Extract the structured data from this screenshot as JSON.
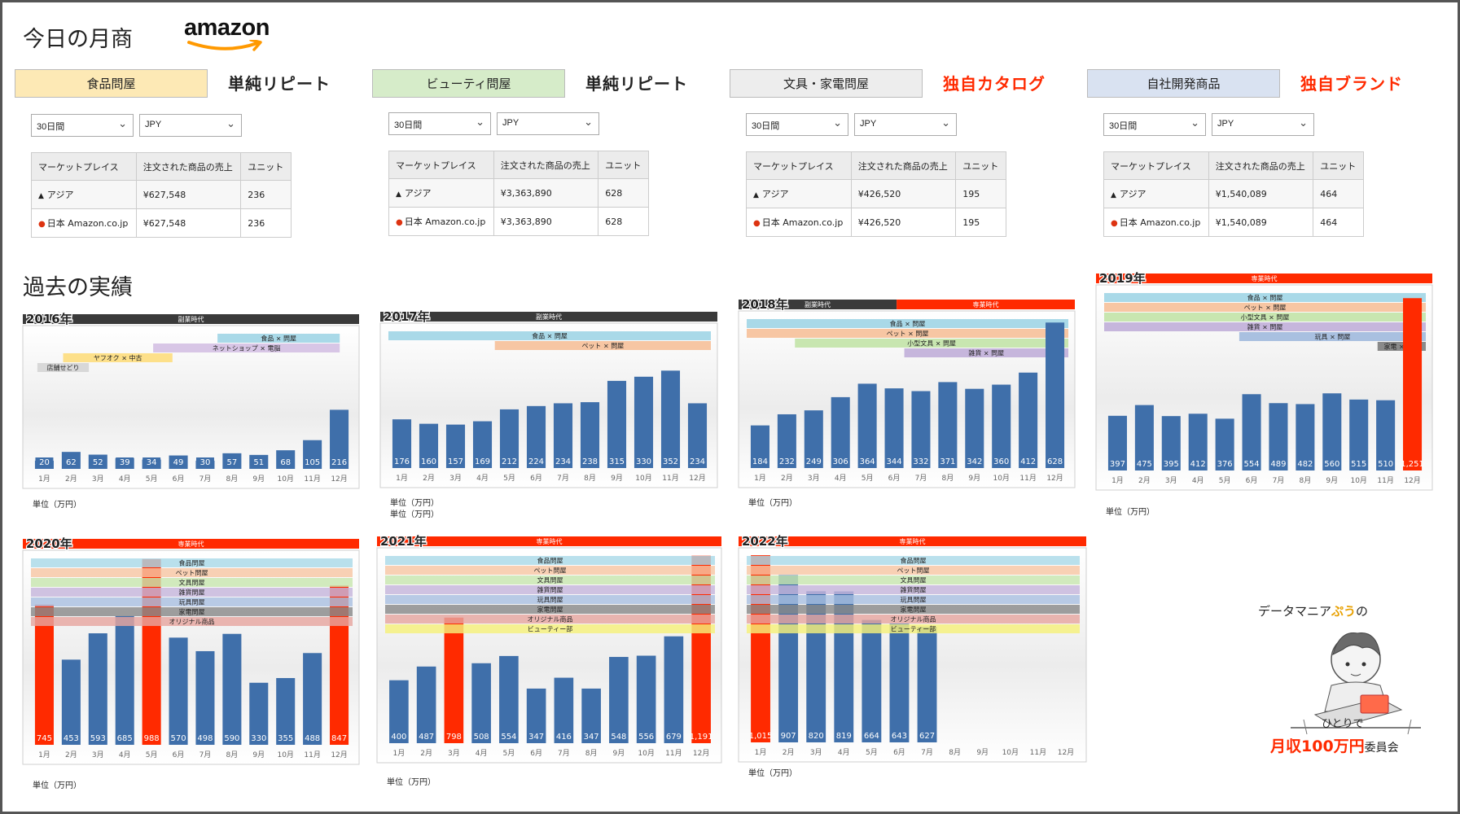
{
  "header": {
    "title": "今日の月商",
    "logo_text": "amazon"
  },
  "past_title": "過去の実績",
  "categories": [
    {
      "name": "食品問屋",
      "kind": "単純リピート",
      "tag_color": "#fde9b5",
      "kind_color": "#222222",
      "period": "30日間",
      "currency": "JPY",
      "table": {
        "headers": [
          "マーケットプレイス",
          "注文された商品の売上",
          "ユニット"
        ],
        "rows": [
          [
            "アジア",
            "¥627,548",
            "236"
          ],
          [
            "日本 Amazon.co.jp",
            "¥627,548",
            "236"
          ]
        ]
      }
    },
    {
      "name": "ビューティ問屋",
      "kind": "単純リピート",
      "tag_color": "#d6ecc9",
      "kind_color": "#222222",
      "period": "30日間",
      "currency": "JPY",
      "table": {
        "headers": [
          "マーケットプレイス",
          "注文された商品の売上",
          "ユニット"
        ],
        "rows": [
          [
            "アジア",
            "¥3,363,890",
            "628"
          ],
          [
            "日本 Amazon.co.jp",
            "¥3,363,890",
            "628"
          ]
        ]
      }
    },
    {
      "name": "文具・家電問屋",
      "kind": "独自カタログ",
      "tag_color": "#ededed",
      "kind_color": "#ff2a00",
      "period": "30日間",
      "currency": "JPY",
      "table": {
        "headers": [
          "マーケットプレイス",
          "注文された商品の売上",
          "ユニット"
        ],
        "rows": [
          [
            "アジア",
            "¥426,520",
            "195"
          ],
          [
            "日本 Amazon.co.jp",
            "¥426,520",
            "195"
          ]
        ]
      }
    },
    {
      "name": "自社開発商品",
      "kind": "独自ブランド",
      "tag_color": "#d9e2f1",
      "kind_color": "#ff2a00",
      "period": "30日間",
      "currency": "JPY",
      "table": {
        "headers": [
          "マーケットプレイス",
          "注文された商品の売上",
          "ユニット"
        ],
        "rows": [
          [
            "アジア",
            "¥1,540,089",
            "464"
          ],
          [
            "日本 Amazon.co.jp",
            "¥1,540,089",
            "464"
          ]
        ]
      }
    }
  ],
  "unit_label": "単位（万円）",
  "era_labels": {
    "side": "副業時代",
    "full": "専業時代"
  },
  "colors": {
    "bar": "#3f6faa",
    "highlight": "#ff2a00",
    "side_era": "#3a3a3a",
    "full_era": "#ff2a00"
  },
  "chart_data": [
    {
      "type": "bar",
      "title": "2016年",
      "eras": [
        "副業時代"
      ],
      "categories": [
        "1月",
        "2月",
        "3月",
        "4月",
        "5月",
        "6月",
        "7月",
        "8月",
        "9月",
        "10月",
        "11月",
        "12月"
      ],
      "values": [
        20,
        62,
        52,
        39,
        34,
        49,
        30,
        57,
        51,
        68,
        105,
        216
      ],
      "highlight": [],
      "ylim": [
        0,
        500
      ],
      "business_lines": [
        "食品 × 問屋",
        "ネットショップ × 電脳",
        "ヤフオク × 中古",
        "店舗せどり"
      ]
    },
    {
      "type": "bar",
      "title": "2017年",
      "eras": [
        "副業時代"
      ],
      "categories": [
        "1月",
        "2月",
        "3月",
        "4月",
        "5月",
        "6月",
        "7月",
        "8月",
        "9月",
        "10月",
        "11月",
        "12月"
      ],
      "values": [
        176,
        160,
        157,
        169,
        212,
        224,
        234,
        238,
        315,
        330,
        352,
        234
      ],
      "highlight": [],
      "ylim": [
        0,
        500
      ],
      "business_lines": [
        "食品 × 問屋",
        "ペット × 問屋"
      ]
    },
    {
      "type": "bar",
      "title": "2018年",
      "eras": [
        "副業時代",
        "専業時代"
      ],
      "categories": [
        "1月",
        "2月",
        "3月",
        "4月",
        "5月",
        "6月",
        "7月",
        "8月",
        "9月",
        "10月",
        "11月",
        "12月"
      ],
      "values": [
        184,
        232,
        249,
        306,
        364,
        344,
        332,
        371,
        342,
        360,
        412,
        628
      ],
      "highlight": [],
      "ylim": [
        0,
        650
      ],
      "business_lines": [
        "食品 × 問屋",
        "ペット × 問屋",
        "小型文具 × 問屋",
        "雑貨 × 問屋"
      ]
    },
    {
      "type": "bar",
      "title": "2019年",
      "eras": [
        "専業時代"
      ],
      "categories": [
        "1月",
        "2月",
        "3月",
        "4月",
        "5月",
        "6月",
        "7月",
        "8月",
        "9月",
        "10月",
        "11月",
        "12月"
      ],
      "values": [
        397,
        475,
        395,
        412,
        376,
        554,
        489,
        482,
        560,
        515,
        510,
        1251
      ],
      "highlight": [
        11
      ],
      "ylim": [
        0,
        1300
      ],
      "business_lines": [
        "食品 × 問屋",
        "ペット × 問屋",
        "小型文具 × 問屋",
        "雑貨 × 問屋",
        "玩具 × 問屋",
        "家電 × 問屋"
      ]
    },
    {
      "type": "bar",
      "title": "2020年",
      "eras": [
        "専業時代"
      ],
      "categories": [
        "1月",
        "2月",
        "3月",
        "4月",
        "5月",
        "6月",
        "7月",
        "8月",
        "9月",
        "10月",
        "11月",
        "12月"
      ],
      "values": [
        745,
        453,
        593,
        685,
        988,
        570,
        498,
        590,
        330,
        355,
        488,
        847
      ],
      "highlight": [
        0,
        4,
        11
      ],
      "ylim": [
        0,
        1000
      ],
      "business_lines": [
        "食品問屋",
        "ペット問屋",
        "文具問屋",
        "雑貨問屋",
        "玩具問屋",
        "家電問屋",
        "オリジナル商品"
      ]
    },
    {
      "type": "bar",
      "title": "2021年",
      "eras": [
        "専業時代"
      ],
      "categories": [
        "1月",
        "2月",
        "3月",
        "4月",
        "5月",
        "6月",
        "7月",
        "8月",
        "9月",
        "10月",
        "11月",
        "12月"
      ],
      "values": [
        400,
        487,
        798,
        508,
        554,
        347,
        416,
        347,
        548,
        556,
        679,
        1191
      ],
      "highlight": [
        2,
        11
      ],
      "ylim": [
        0,
        1200
      ],
      "business_lines": [
        "食品問屋",
        "ペット問屋",
        "文具問屋",
        "雑貨問屋",
        "玩具問屋",
        "家電問屋",
        "オリジナル商品",
        "ビューティー部"
      ]
    },
    {
      "type": "bar",
      "title": "2022年",
      "eras": [
        "専業時代"
      ],
      "categories": [
        "1月",
        "2月",
        "3月",
        "4月",
        "5月",
        "6月",
        "7月",
        "8月",
        "9月",
        "10月",
        "11月",
        "12月"
      ],
      "values": [
        1015,
        907,
        820,
        819,
        664,
        643,
        627,
        null,
        null,
        null,
        null,
        null
      ],
      "highlight": [
        0
      ],
      "ylim": [
        0,
        1020
      ],
      "business_lines": [
        "食品問屋",
        "ペット問屋",
        "文具問屋",
        "雑貨問屋",
        "玩具問屋",
        "家電問屋",
        "オリジナル商品",
        "ビューティー部"
      ]
    }
  ],
  "mascot": {
    "top_prefix": "データマニア",
    "top_pu": "ぷう",
    "top_suffix": "の",
    "mid": "ひとりで",
    "big": "月収100万円",
    "small": "委員会"
  }
}
